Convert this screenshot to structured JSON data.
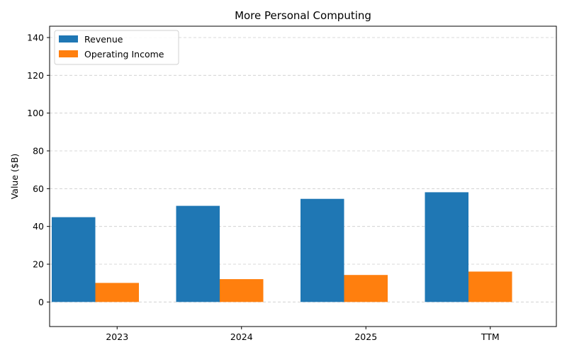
{
  "chart_data": {
    "type": "bar",
    "title": "More Personal Computing",
    "xlabel": "",
    "ylabel": "Value ($B)",
    "categories": [
      "2023",
      "2024",
      "2025",
      "TTM"
    ],
    "series": [
      {
        "name": "Revenue",
        "values": [
          44.9,
          50.9,
          54.6,
          58.1
        ],
        "color": "#1f77b4"
      },
      {
        "name": "Operating Income",
        "values": [
          10.1,
          12.1,
          14.3,
          16.1
        ],
        "color": "#ff7f0e"
      }
    ],
    "ylim": [
      -13,
      146
    ],
    "yticks": [
      0,
      20,
      40,
      60,
      80,
      100,
      120,
      140
    ],
    "grid": "y-dashed",
    "legend_position": "top-left"
  }
}
